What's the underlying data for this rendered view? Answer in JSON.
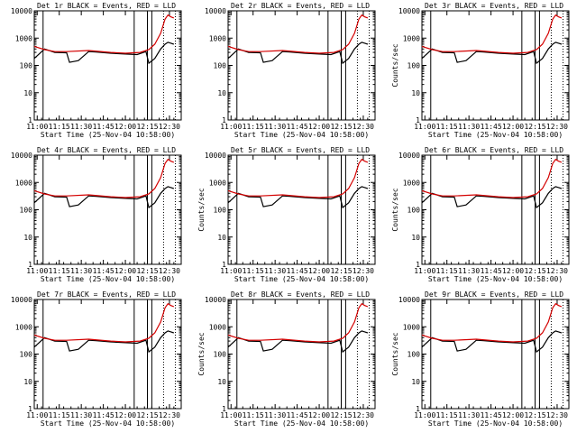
{
  "colors": {
    "events": "#000000",
    "lld": "#d40000",
    "axis": "#000000",
    "background": "#ffffff"
  },
  "chart_data": [
    {
      "type": "line",
      "title": "Det 1r BLACK = Events, RED = LLD",
      "xlabel": "Start Time (25-Nov-04 10:58:00)",
      "ylabel": "",
      "yscale": "log",
      "ylim": [
        1,
        10000
      ],
      "xlim": [
        "10:58",
        "12:38"
      ],
      "xticks": [
        "11:00",
        "11:15",
        "11:30",
        "11:45",
        "12:00",
        "12:15",
        "12:30"
      ],
      "yticks": [
        "1",
        "10",
        "100",
        "1000",
        "10000"
      ],
      "markers_solid": [
        "11:04",
        "12:06",
        "12:15",
        "12:18"
      ],
      "markers_dotted": [
        "12:26",
        "12:34"
      ],
      "series": [
        {
          "x": [
            "10:58",
            "11:05",
            "11:12",
            "11:20",
            "11:22",
            "11:28",
            "11:35",
            "11:40",
            "11:50",
            "12:00",
            "12:08",
            "12:14",
            "12:16",
            "12:20",
            "12:24",
            "12:27",
            "12:29",
            "12:31",
            "12:33"
          ],
          "values": [
            180,
            400,
            300,
            290,
            130,
            150,
            320,
            310,
            280,
            260,
            250,
            320,
            120,
            180,
            400,
            600,
            700,
            650,
            600
          ]
        },
        {
          "x": [
            "10:58",
            "11:05",
            "11:12",
            "11:20",
            "11:35",
            "11:50",
            "12:00",
            "12:10",
            "12:16",
            "12:20",
            "12:24",
            "12:27",
            "12:29",
            "12:31",
            "12:33"
          ],
          "values": [
            500,
            380,
            320,
            320,
            350,
            300,
            280,
            300,
            380,
            600,
            1500,
            5000,
            7000,
            6000,
            5500
          ]
        }
      ]
    },
    {
      "type": "line",
      "title": "Det 2r BLACK = Events, RED = LLD",
      "xlabel": "Start Time (25-Nov-04 10:58:00)",
      "ylabel": "",
      "yscale": "log",
      "ylim": [
        1,
        10000
      ],
      "xlim": [
        "10:58",
        "12:38"
      ],
      "xticks": [
        "11:00",
        "11:15",
        "11:30",
        "11:45",
        "12:00",
        "12:15",
        "12:30"
      ],
      "yticks": [
        "1",
        "10",
        "100",
        "1000",
        "10000"
      ],
      "markers_solid": [
        "11:04",
        "12:06",
        "12:15",
        "12:18"
      ],
      "markers_dotted": [
        "12:26",
        "12:34"
      ],
      "series": [
        {
          "x": [
            "10:58",
            "11:05",
            "11:12",
            "11:20",
            "11:22",
            "11:28",
            "11:35",
            "11:40",
            "11:50",
            "12:00",
            "12:08",
            "12:14",
            "12:16",
            "12:20",
            "12:24",
            "12:27",
            "12:29",
            "12:31",
            "12:33"
          ],
          "values": [
            180,
            400,
            300,
            290,
            130,
            150,
            320,
            310,
            280,
            260,
            250,
            320,
            120,
            180,
            400,
            600,
            700,
            650,
            600
          ]
        },
        {
          "x": [
            "10:58",
            "11:05",
            "11:12",
            "11:20",
            "11:35",
            "11:50",
            "12:00",
            "12:10",
            "12:16",
            "12:20",
            "12:24",
            "12:27",
            "12:29",
            "12:31",
            "12:33"
          ],
          "values": [
            500,
            380,
            320,
            320,
            350,
            300,
            280,
            300,
            380,
            600,
            1500,
            5000,
            7000,
            6000,
            5500
          ]
        }
      ]
    },
    {
      "type": "line",
      "title": "Det 3r BLACK = Events, RED = LLD",
      "xlabel": "Start Time (25-Nov-04 10:58:00)",
      "ylabel": "Counts/sec",
      "yscale": "log",
      "ylim": [
        1,
        10000
      ],
      "xlim": [
        "10:58",
        "12:38"
      ],
      "xticks": [
        "11:00",
        "11:15",
        "11:30",
        "11:45",
        "12:00",
        "12:15",
        "12:30"
      ],
      "yticks": [
        "1",
        "10",
        "100",
        "1000",
        "10000"
      ],
      "markers_solid": [
        "11:04",
        "12:06",
        "12:15",
        "12:18"
      ],
      "markers_dotted": [
        "12:26",
        "12:34"
      ],
      "series": [
        {
          "x": [
            "10:58",
            "11:05",
            "11:12",
            "11:20",
            "11:22",
            "11:28",
            "11:35",
            "11:40",
            "11:50",
            "12:00",
            "12:08",
            "12:14",
            "12:16",
            "12:20",
            "12:24",
            "12:27",
            "12:29",
            "12:31",
            "12:33"
          ],
          "values": [
            180,
            400,
            300,
            290,
            130,
            150,
            320,
            310,
            280,
            260,
            250,
            320,
            120,
            180,
            400,
            600,
            700,
            650,
            600
          ]
        },
        {
          "x": [
            "10:58",
            "11:05",
            "11:12",
            "11:20",
            "11:35",
            "11:50",
            "12:00",
            "12:10",
            "12:16",
            "12:20",
            "12:24",
            "12:27",
            "12:29",
            "12:31",
            "12:33"
          ],
          "values": [
            500,
            380,
            320,
            320,
            350,
            300,
            280,
            300,
            380,
            600,
            1500,
            5000,
            7000,
            6000,
            5500
          ]
        }
      ]
    },
    {
      "type": "line",
      "title": "Det 4r BLACK = Events, RED = LLD",
      "xlabel": "Start Time (25-Nov-04 10:58:00)",
      "ylabel": "",
      "yscale": "log",
      "ylim": [
        1,
        10000
      ],
      "xlim": [
        "10:58",
        "12:38"
      ],
      "xticks": [
        "11:00",
        "11:15",
        "11:30",
        "11:45",
        "12:00",
        "12:15",
        "12:30"
      ],
      "yticks": [
        "1",
        "10",
        "100",
        "1000",
        "10000"
      ],
      "markers_solid": [
        "11:04",
        "12:06",
        "12:15",
        "12:18"
      ],
      "markers_dotted": [
        "12:26",
        "12:34"
      ],
      "series": [
        {
          "x": [
            "10:58",
            "11:05",
            "11:12",
            "11:20",
            "11:22",
            "11:28",
            "11:35",
            "11:40",
            "11:50",
            "12:00",
            "12:08",
            "12:14",
            "12:16",
            "12:20",
            "12:24",
            "12:27",
            "12:29",
            "12:31",
            "12:33"
          ],
          "values": [
            180,
            400,
            300,
            290,
            130,
            150,
            320,
            310,
            280,
            260,
            250,
            320,
            120,
            180,
            400,
            600,
            700,
            650,
            600
          ]
        },
        {
          "x": [
            "10:58",
            "11:05",
            "11:12",
            "11:20",
            "11:35",
            "11:50",
            "12:00",
            "12:10",
            "12:16",
            "12:20",
            "12:24",
            "12:27",
            "12:29",
            "12:31",
            "12:33"
          ],
          "values": [
            500,
            380,
            320,
            320,
            350,
            300,
            280,
            300,
            380,
            600,
            1500,
            5000,
            7000,
            6000,
            5500
          ]
        }
      ]
    },
    {
      "type": "line",
      "title": "Det 5r BLACK = Events, RED = LLD",
      "xlabel": "Start Time (25-Nov-04 10:58:00)",
      "ylabel": "Counts/sec",
      "yscale": "log",
      "ylim": [
        1,
        10000
      ],
      "xlim": [
        "10:58",
        "12:38"
      ],
      "xticks": [
        "11:00",
        "11:15",
        "11:30",
        "11:45",
        "12:00",
        "12:15",
        "12:30"
      ],
      "yticks": [
        "1",
        "10",
        "100",
        "1000",
        "10000"
      ],
      "markers_solid": [
        "11:04",
        "12:06",
        "12:15",
        "12:18"
      ],
      "markers_dotted": [
        "12:26",
        "12:34"
      ],
      "series": [
        {
          "x": [
            "10:58",
            "11:05",
            "11:12",
            "11:20",
            "11:22",
            "11:28",
            "11:35",
            "11:40",
            "11:50",
            "12:00",
            "12:08",
            "12:14",
            "12:16",
            "12:20",
            "12:24",
            "12:27",
            "12:29",
            "12:31",
            "12:33"
          ],
          "values": [
            180,
            400,
            300,
            290,
            130,
            150,
            320,
            310,
            280,
            260,
            250,
            320,
            120,
            180,
            400,
            600,
            700,
            650,
            600
          ]
        },
        {
          "x": [
            "10:58",
            "11:05",
            "11:12",
            "11:20",
            "11:35",
            "11:50",
            "12:00",
            "12:10",
            "12:16",
            "12:20",
            "12:24",
            "12:27",
            "12:29",
            "12:31",
            "12:33"
          ],
          "values": [
            500,
            380,
            320,
            320,
            350,
            300,
            280,
            300,
            380,
            600,
            1500,
            5000,
            7000,
            6000,
            5500
          ]
        }
      ]
    },
    {
      "type": "line",
      "title": "Det 6r BLACK = Events, RED = LLD",
      "xlabel": "Start Time (25-Nov-04 10:58:00)",
      "ylabel": "Counts/sec",
      "yscale": "log",
      "ylim": [
        1,
        10000
      ],
      "xlim": [
        "10:58",
        "12:38"
      ],
      "xticks": [
        "11:00",
        "11:15",
        "11:30",
        "11:45",
        "12:00",
        "12:15",
        "12:30"
      ],
      "yticks": [
        "1",
        "10",
        "100",
        "1000",
        "10000"
      ],
      "markers_solid": [
        "11:04",
        "12:06",
        "12:15",
        "12:18"
      ],
      "markers_dotted": [
        "12:26",
        "12:34"
      ],
      "series": [
        {
          "x": [
            "10:58",
            "11:05",
            "11:12",
            "11:20",
            "11:22",
            "11:28",
            "11:35",
            "11:40",
            "11:50",
            "12:00",
            "12:08",
            "12:14",
            "12:16",
            "12:20",
            "12:24",
            "12:27",
            "12:29",
            "12:31",
            "12:33"
          ],
          "values": [
            180,
            400,
            300,
            290,
            130,
            150,
            320,
            310,
            280,
            260,
            250,
            320,
            120,
            180,
            400,
            600,
            700,
            650,
            600
          ]
        },
        {
          "x": [
            "10:58",
            "11:05",
            "11:12",
            "11:20",
            "11:35",
            "11:50",
            "12:00",
            "12:10",
            "12:16",
            "12:20",
            "12:24",
            "12:27",
            "12:29",
            "12:31",
            "12:33"
          ],
          "values": [
            500,
            380,
            320,
            320,
            350,
            300,
            280,
            300,
            380,
            600,
            1500,
            5000,
            7000,
            6000,
            5500
          ]
        }
      ]
    },
    {
      "type": "line",
      "title": "Det 7r BLACK = Events, RED = LLD",
      "xlabel": "Start Time (25-Nov-04 10:58:00)",
      "ylabel": "",
      "yscale": "log",
      "ylim": [
        1,
        10000
      ],
      "xlim": [
        "10:58",
        "12:38"
      ],
      "xticks": [
        "11:00",
        "11:15",
        "11:30",
        "11:45",
        "12:00",
        "12:15",
        "12:30"
      ],
      "yticks": [
        "1",
        "10",
        "100",
        "1000",
        "10000"
      ],
      "markers_solid": [
        "11:04",
        "12:06",
        "12:15",
        "12:18"
      ],
      "markers_dotted": [
        "12:26",
        "12:34"
      ],
      "series": [
        {
          "x": [
            "10:58",
            "11:05",
            "11:12",
            "11:20",
            "11:22",
            "11:28",
            "11:35",
            "11:40",
            "11:50",
            "12:00",
            "12:08",
            "12:14",
            "12:16",
            "12:20",
            "12:24",
            "12:27",
            "12:29",
            "12:31",
            "12:33"
          ],
          "values": [
            180,
            400,
            300,
            290,
            130,
            150,
            320,
            310,
            280,
            260,
            250,
            320,
            120,
            180,
            400,
            600,
            700,
            650,
            600
          ]
        },
        {
          "x": [
            "10:58",
            "11:05",
            "11:12",
            "11:20",
            "11:35",
            "11:50",
            "12:00",
            "12:10",
            "12:16",
            "12:20",
            "12:24",
            "12:27",
            "12:29",
            "12:31",
            "12:33"
          ],
          "values": [
            500,
            380,
            320,
            320,
            350,
            300,
            280,
            300,
            380,
            600,
            1500,
            5000,
            7000,
            6000,
            5500
          ]
        }
      ]
    },
    {
      "type": "line",
      "title": "Det 8r BLACK = Events, RED = LLD",
      "xlabel": "Start Time (25-Nov-04 10:58:00)",
      "ylabel": "Counts/sec",
      "yscale": "log",
      "ylim": [
        1,
        10000
      ],
      "xlim": [
        "10:58",
        "12:38"
      ],
      "xticks": [
        "11:00",
        "11:15",
        "11:30",
        "11:45",
        "12:00",
        "12:15",
        "12:30"
      ],
      "yticks": [
        "1",
        "10",
        "100",
        "1000",
        "10000"
      ],
      "markers_solid": [
        "11:04",
        "12:06",
        "12:15",
        "12:18"
      ],
      "markers_dotted": [
        "12:26",
        "12:34"
      ],
      "series": [
        {
          "x": [
            "10:58",
            "11:05",
            "11:12",
            "11:20",
            "11:22",
            "11:28",
            "11:35",
            "11:40",
            "11:50",
            "12:00",
            "12:08",
            "12:14",
            "12:16",
            "12:20",
            "12:24",
            "12:27",
            "12:29",
            "12:31",
            "12:33"
          ],
          "values": [
            180,
            400,
            300,
            290,
            130,
            150,
            320,
            310,
            280,
            260,
            250,
            320,
            120,
            180,
            400,
            600,
            700,
            650,
            600
          ]
        },
        {
          "x": [
            "10:58",
            "11:05",
            "11:12",
            "11:20",
            "11:35",
            "11:50",
            "12:00",
            "12:10",
            "12:16",
            "12:20",
            "12:24",
            "12:27",
            "12:29",
            "12:31",
            "12:33"
          ],
          "values": [
            500,
            380,
            320,
            320,
            350,
            300,
            280,
            300,
            380,
            600,
            1500,
            5000,
            7000,
            6000,
            5500
          ]
        }
      ]
    },
    {
      "type": "line",
      "title": "Det 9r BLACK = Events, RED = LLD",
      "xlabel": "Start Time (25-Nov-04 10:58:00)",
      "ylabel": "Counts/sec",
      "yscale": "log",
      "ylim": [
        1,
        10000
      ],
      "xlim": [
        "10:58",
        "12:38"
      ],
      "xticks": [
        "11:00",
        "11:15",
        "11:30",
        "11:45",
        "12:00",
        "12:15",
        "12:30"
      ],
      "yticks": [
        "1",
        "10",
        "100",
        "1000",
        "10000"
      ],
      "markers_solid": [
        "11:04",
        "12:06",
        "12:15",
        "12:18"
      ],
      "markers_dotted": [
        "12:26",
        "12:34"
      ],
      "series": [
        {
          "x": [
            "10:58",
            "11:05",
            "11:12",
            "11:20",
            "11:22",
            "11:28",
            "11:35",
            "11:40",
            "11:50",
            "12:00",
            "12:08",
            "12:14",
            "12:16",
            "12:20",
            "12:24",
            "12:27",
            "12:29",
            "12:31",
            "12:33"
          ],
          "values": [
            180,
            400,
            300,
            290,
            130,
            150,
            320,
            310,
            280,
            260,
            250,
            320,
            120,
            180,
            400,
            600,
            700,
            650,
            600
          ]
        },
        {
          "x": [
            "10:58",
            "11:05",
            "11:12",
            "11:20",
            "11:35",
            "11:50",
            "12:00",
            "12:10",
            "12:16",
            "12:20",
            "12:24",
            "12:27",
            "12:29",
            "12:31",
            "12:33"
          ],
          "values": [
            500,
            380,
            320,
            320,
            350,
            300,
            280,
            300,
            380,
            600,
            1500,
            5000,
            7000,
            6000,
            5500
          ]
        }
      ]
    }
  ]
}
